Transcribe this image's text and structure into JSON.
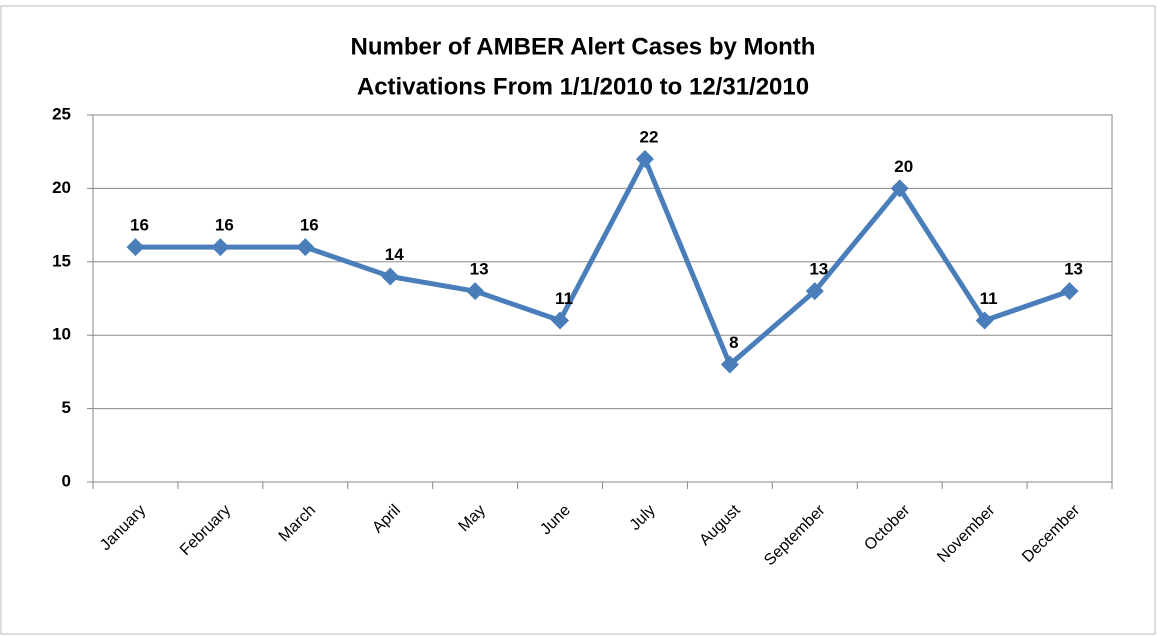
{
  "chart_data": {
    "type": "line",
    "title": "Number of AMBER Alert Cases by Month",
    "subtitle": "Activations From 1/1/2010 to 12/31/2010",
    "categories": [
      "January",
      "February",
      "March",
      "April",
      "May",
      "June",
      "July",
      "August",
      "September",
      "October",
      "November",
      "December"
    ],
    "values": [
      16,
      16,
      16,
      14,
      13,
      11,
      22,
      8,
      13,
      20,
      11,
      13
    ],
    "color": "#4a7ebb",
    "marker": "diamond",
    "data_labels": true,
    "ylim": [
      0,
      25
    ],
    "yticks": [
      0,
      5,
      10,
      15,
      20,
      25
    ],
    "grid": true
  }
}
